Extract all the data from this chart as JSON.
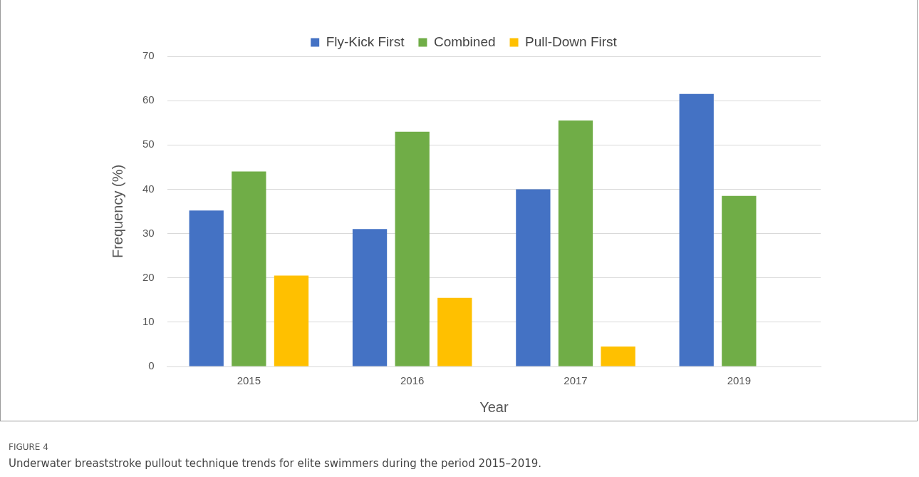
{
  "chart_data": {
    "type": "bar",
    "categories": [
      "2015",
      "2016",
      "2017",
      "2019"
    ],
    "series": [
      {
        "name": "Fly-Kick First",
        "color": "#4472c4",
        "values": [
          35.2,
          31,
          40,
          61.5
        ]
      },
      {
        "name": "Combined",
        "color": "#70ad47",
        "values": [
          44,
          53,
          55.5,
          38.5
        ]
      },
      {
        "name": "Pull-Down First",
        "color": "#ffc000",
        "values": [
          20.5,
          15.5,
          4.5,
          null
        ]
      }
    ],
    "xlabel": "Year",
    "ylabel": "Frequency (%)",
    "ylim": [
      0,
      70
    ],
    "yticks": [
      0,
      10,
      20,
      30,
      40,
      50,
      60,
      70
    ],
    "grid": "y",
    "legend": "top",
    "annotations": [
      "FIGURE 4",
      "Underwater breaststroke pullout technique trends for elite swimmers during the period 2015–2019."
    ]
  }
}
